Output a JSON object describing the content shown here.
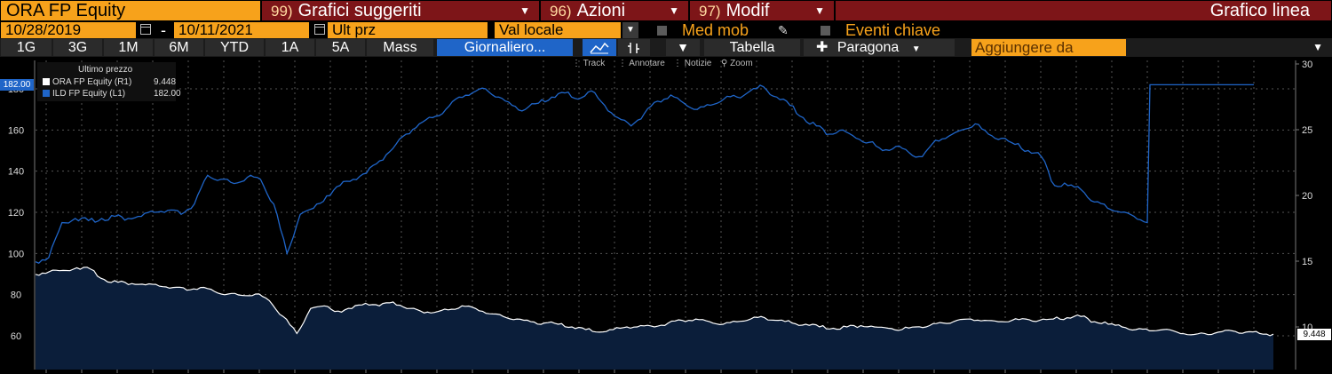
{
  "header": {
    "ticker": "ORA FP Equity",
    "menus": [
      {
        "num": "99)",
        "label": "Grafici suggeriti"
      },
      {
        "num": "96)",
        "label": "Azioni"
      },
      {
        "num": "97)",
        "label": "Modif"
      }
    ],
    "title": "Grafico linea"
  },
  "controls": {
    "start_date": "10/28/2019",
    "date_sep": "-",
    "end_date": "10/11/2021",
    "field": "Ult prz",
    "currency": "Val locale",
    "moving_avg_label": "Med mob",
    "events_label": "Eventi chiave"
  },
  "periods": [
    "1G",
    "3G",
    "1M",
    "6M",
    "YTD",
    "1A",
    "5A",
    "Mass"
  ],
  "frequency": "Giornaliero...",
  "table_label": "Tabella",
  "compare_label": "Paragona",
  "add_field_placeholder": "Aggiungere da",
  "toolstrip": {
    "track": "Track",
    "annotate": "Annotare",
    "news": "Notizie",
    "zoom": "Zoom"
  },
  "legend": {
    "header": "Ultimo prezzo",
    "rows": [
      {
        "name": "ORA FP Equity",
        "axis": "(R1)",
        "value": "9.448",
        "color": "#ffffff"
      },
      {
        "name": "ILD FP Equity",
        "axis": "(L1)",
        "value": "182.00",
        "color": "#1f65c8"
      }
    ]
  },
  "tags": {
    "left": "182.00",
    "right": "9.448"
  },
  "colors": {
    "orange": "#f7a21b",
    "maroon": "#7d1518",
    "blue": "#1f65c8",
    "area": "#0b1e3a"
  },
  "chart_data": {
    "type": "line",
    "left_axis": {
      "ticks": [
        60,
        80,
        100,
        120,
        140,
        160,
        180
      ],
      "range": [
        50,
        195
      ]
    },
    "right_axis": {
      "ticks": [
        10,
        15,
        20,
        25,
        30
      ],
      "range": [
        8,
        30.5
      ]
    },
    "grid": true,
    "series": [
      {
        "name": "ILD FP Equity",
        "axis": "left",
        "values": [
          96,
          98,
          115,
          117,
          116,
          117,
          118,
          117,
          118,
          120,
          121,
          119,
          124,
          138,
          136,
          134,
          137,
          136,
          124,
          100,
          119,
          122,
          128,
          133,
          136,
          139,
          145,
          151,
          158,
          163,
          166,
          170,
          176,
          178,
          180,
          176,
          172,
          170,
          173,
          176,
          178,
          175,
          179,
          172,
          166,
          162,
          168,
          174,
          177,
          173,
          170,
          172,
          175,
          176,
          179,
          181,
          176,
          172,
          166,
          162,
          158,
          160,
          156,
          154,
          150,
          152,
          149,
          147,
          155,
          157,
          160,
          163,
          158,
          156,
          153,
          150,
          147,
          133,
          133,
          131,
          125,
          122,
          120,
          118,
          115,
          182,
          182,
          182,
          182,
          182,
          182
        ]
      },
      {
        "name": "ORA FP Equity",
        "axis": "right",
        "values": [
          14.0,
          14.2,
          14.3,
          14.5,
          14.4,
          13.6,
          13.4,
          13.3,
          13.2,
          13.1,
          13.0,
          12.8,
          13.0,
          12.7,
          12.5,
          12.4,
          12.5,
          12.0,
          10.8,
          9.5,
          11.4,
          11.6,
          11.2,
          11.4,
          11.8,
          11.6,
          11.9,
          11.4,
          11.2,
          11.1,
          11.3,
          11.6,
          11.4,
          11.0,
          10.8,
          10.6,
          10.4,
          10.3,
          10.2,
          10.0,
          9.8,
          9.6,
          9.8,
          10.0,
          10.1,
          10.0,
          10.3,
          10.5,
          10.6,
          10.4,
          10.2,
          10.4,
          10.6,
          10.7,
          10.5,
          10.3,
          10.2,
          10.0,
          9.9,
          10.0,
          10.1,
          10.0,
          9.9,
          9.8,
          10.0,
          10.1,
          10.3,
          10.5,
          10.6,
          10.5,
          10.4,
          10.5,
          10.6,
          10.5,
          10.6,
          10.7,
          10.8,
          10.4,
          10.2,
          10.0,
          9.8,
          9.7,
          9.8,
          9.6,
          9.4,
          9.5,
          9.6,
          9.7,
          9.6,
          9.5,
          9.448
        ]
      }
    ]
  }
}
